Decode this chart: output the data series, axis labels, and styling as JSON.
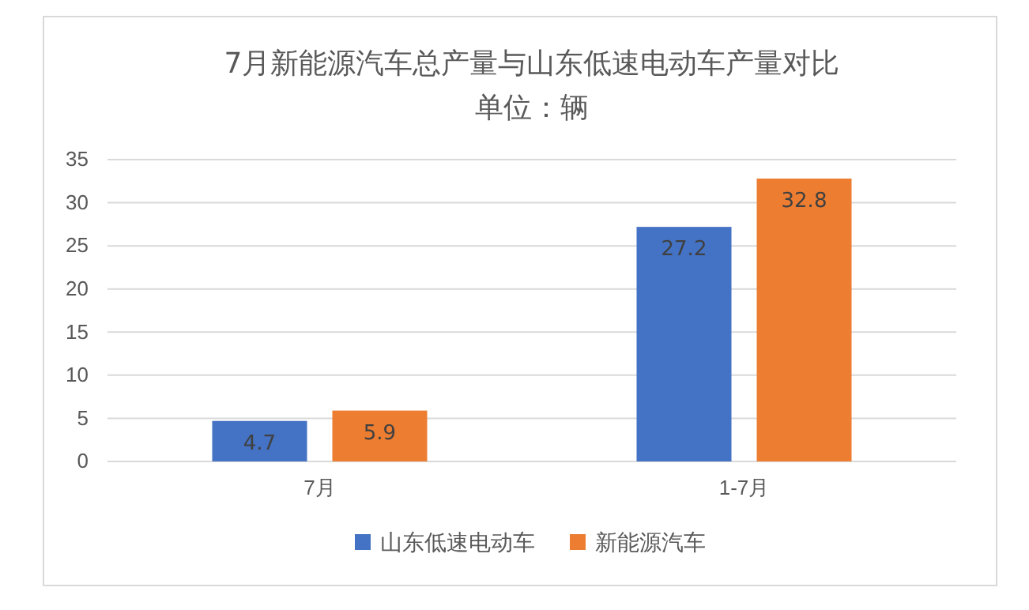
{
  "chart_data": {
    "type": "bar",
    "title": "7月新能源汽车总产量与山东低速电动车产量对比",
    "subtitle": "单位：辆",
    "categories": [
      "7月",
      "1-7月"
    ],
    "series": [
      {
        "name": "山东低速电动车",
        "color": "#4472c4",
        "values": [
          4.7,
          27.2
        ]
      },
      {
        "name": "新能源汽车",
        "color": "#ed7d31",
        "values": [
          5.9,
          32.8
        ]
      }
    ],
    "ylim": [
      0,
      35
    ],
    "yticks": [
      0,
      5,
      10,
      15,
      20,
      25,
      30,
      35
    ],
    "grid": "y",
    "legend": "bottom",
    "data_labels": true
  }
}
